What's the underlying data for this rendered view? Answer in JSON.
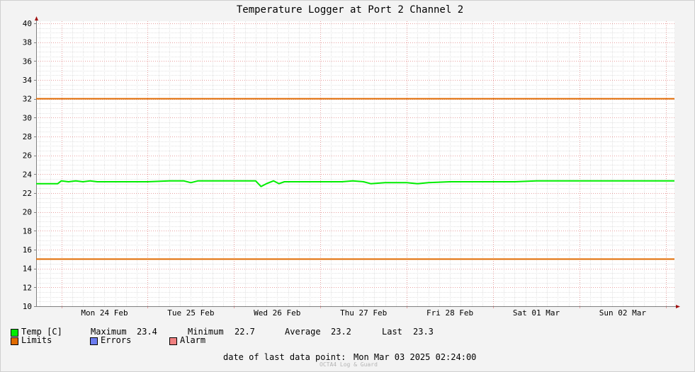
{
  "chart_data": {
    "type": "line",
    "title": "Temperature Logger at Port 2 Channel 2",
    "ylim": [
      10,
      40
    ],
    "y_ticks": [
      10,
      12,
      14,
      16,
      18,
      20,
      22,
      24,
      26,
      28,
      30,
      32,
      34,
      36,
      38,
      40
    ],
    "x_range": [
      "2025-02-23 17:00",
      "2025-03-03 02:24"
    ],
    "x_ticks": [
      {
        "label": "Mon 24 Feb",
        "date": "2025-02-24 12:00"
      },
      {
        "label": "Tue 25 Feb",
        "date": "2025-02-25 12:00"
      },
      {
        "label": "Wed 26 Feb",
        "date": "2025-02-26 12:00"
      },
      {
        "label": "Thu 27 Feb",
        "date": "2025-02-27 12:00"
      },
      {
        "label": "Fri 28 Feb",
        "date": "2025-02-28 12:00"
      },
      {
        "label": "Sat 01 Mar",
        "date": "2025-03-01 12:00"
      },
      {
        "label": "Sun 02 Mar",
        "date": "2025-03-02 12:00"
      }
    ],
    "grid": true,
    "series": [
      {
        "name": "Temp [C]",
        "color": "#00ee00",
        "x": [
          "2025-02-23 17:00",
          "2025-02-23 23:00",
          "2025-02-24 00:00",
          "2025-02-24 02:00",
          "2025-02-24 04:00",
          "2025-02-24 06:00",
          "2025-02-24 08:00",
          "2025-02-24 10:00",
          "2025-02-24 12:00",
          "2025-02-24 18:00",
          "2025-02-25 00:00",
          "2025-02-25 06:00",
          "2025-02-25 10:00",
          "2025-02-25 12:00",
          "2025-02-25 14:00",
          "2025-02-25 18:00",
          "2025-02-26 00:00",
          "2025-02-26 06:00",
          "2025-02-26 07:30",
          "2025-02-26 09:00",
          "2025-02-26 11:00",
          "2025-02-26 12:30",
          "2025-02-26 14:00",
          "2025-02-26 18:00",
          "2025-02-27 00:00",
          "2025-02-27 06:00",
          "2025-02-27 09:00",
          "2025-02-27 12:00",
          "2025-02-27 14:00",
          "2025-02-27 18:00",
          "2025-02-28 00:00",
          "2025-02-28 03:00",
          "2025-02-28 06:00",
          "2025-02-28 12:00",
          "2025-02-28 18:00",
          "2025-03-01 00:00",
          "2025-03-01 06:00",
          "2025-03-01 12:00",
          "2025-03-01 18:00",
          "2025-03-02 00:00",
          "2025-03-02 06:00",
          "2025-03-02 12:00",
          "2025-03-02 18:00",
          "2025-03-03 00:00",
          "2025-03-03 02:24"
        ],
        "values": [
          23.0,
          23.0,
          23.3,
          23.2,
          23.3,
          23.2,
          23.3,
          23.2,
          23.2,
          23.2,
          23.2,
          23.3,
          23.3,
          23.1,
          23.3,
          23.3,
          23.3,
          23.3,
          22.7,
          23.0,
          23.3,
          23.0,
          23.2,
          23.2,
          23.2,
          23.2,
          23.3,
          23.2,
          23.0,
          23.1,
          23.1,
          23.0,
          23.1,
          23.2,
          23.2,
          23.2,
          23.2,
          23.3,
          23.3,
          23.3,
          23.3,
          23.3,
          23.3,
          23.3,
          23.3
        ]
      },
      {
        "name": "Limits",
        "color": "#e06a00",
        "levels": [
          32,
          15
        ]
      }
    ],
    "legend": {
      "temp": {
        "label": "Temp [C]",
        "color": "#00ee00"
      },
      "stats": {
        "max_label": "Maximum",
        "max": "23.4",
        "min_label": "Minimum",
        "min": "22.7",
        "avg_label": "Average",
        "avg": "23.2",
        "last_label": "Last",
        "last": "23.3"
      },
      "limits": {
        "label": "Limits",
        "color": "#e06a00"
      },
      "errors": {
        "label": "Errors",
        "color": "#6c7cf0"
      },
      "alarm": {
        "label": "Alarm",
        "color": "#f08080"
      }
    },
    "footer": {
      "label": "date of last data point:",
      "value": "Mon Mar 03 2025 02:24:00",
      "credit": "OCTA4 Log & Guard"
    }
  }
}
